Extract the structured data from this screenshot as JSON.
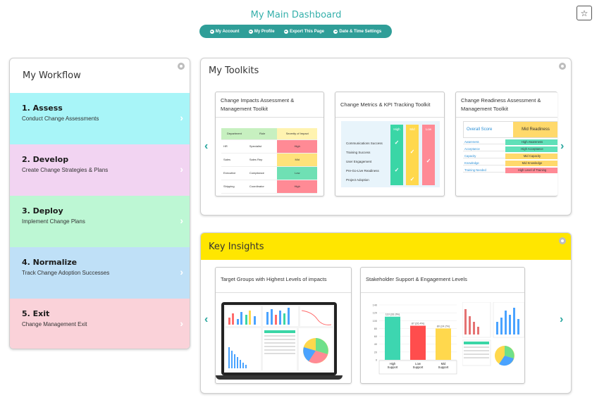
{
  "header": {
    "title": "My Main Dashboard",
    "nav": [
      "My Account",
      "My Profile",
      "Export This Page",
      "Date & Time Settings"
    ],
    "favorite_icon": "star-icon"
  },
  "workflow": {
    "title": "My Workflow",
    "items": [
      {
        "title": "1. Assess",
        "subtitle": "Conduct Change Assessments",
        "color": "#a8f5f8"
      },
      {
        "title": "2. Develop",
        "subtitle": "Create Change Strategies & Plans",
        "color": "#f2d4f2"
      },
      {
        "title": "3. Deploy",
        "subtitle": "Implement Change Plans",
        "color": "#bdf7d4"
      },
      {
        "title": "4. Normalize",
        "subtitle": "Track Change Adoption Successes",
        "color": "#bfe0f7"
      },
      {
        "title": "5. Exit",
        "subtitle": "Change Management Exit",
        "color": "#fad2d9"
      }
    ]
  },
  "toolkits": {
    "title": "My Toolkits",
    "cards": [
      {
        "title": "Change Impacts Assessment & Management Toolkit",
        "table": {
          "headers": [
            "Department",
            "Role",
            "Severity of Impact"
          ],
          "rows": [
            {
              "dept": "HR",
              "role": "Specialist",
              "severity": "High",
              "color": "#ff8a95"
            },
            {
              "dept": "Sales",
              "role": "Sales Rep",
              "severity": "Mid",
              "color": "#ffe27a"
            },
            {
              "dept": "Executive",
              "role": "Compliance",
              "severity": "Low",
              "color": "#6fe0b4"
            },
            {
              "dept": "Shipping",
              "role": "Coordinator",
              "severity": "High",
              "color": "#ff8a95"
            }
          ]
        }
      },
      {
        "title": "Change Metrics & KPI Tracking Toolkit",
        "columns": [
          "High",
          "Mid",
          "Low"
        ],
        "rows": [
          "Communications Success",
          "Training Success",
          "User Engagement",
          "Pre-Go-Live Readiness",
          "Project Adoption"
        ]
      },
      {
        "title": "Change Readiness Assessment & Management Toolkit",
        "overall_label": "Overall Score",
        "overall_value": "Mid Readiness",
        "rows": [
          {
            "k": "Awareness",
            "v": "High Awareness",
            "color": "#5fe0b8"
          },
          {
            "k": "Acceptance",
            "v": "High Acceptance",
            "color": "#5fe0b8"
          },
          {
            "k": "Capacity",
            "v": "Mid Capacity",
            "color": "#ffd96b"
          },
          {
            "k": "Knowledge",
            "v": "Mid Knowledge",
            "color": "#ffd96b"
          },
          {
            "k": "Training Needed",
            "v": "High Level of Training",
            "color": "#ff8a95"
          }
        ]
      }
    ]
  },
  "insights": {
    "title": "Key Insights",
    "cards": [
      {
        "title": "Target Groups with Highest Levels of impacts"
      },
      {
        "title": "Stakeholder Support & Engagement Levels",
        "bars": [
          {
            "label": "High Support",
            "value": 110,
            "tag": "110 (33.3%)",
            "color": "#3dd6b0"
          },
          {
            "label": "Low Support",
            "value": 87,
            "tag": "87 (26.4%)",
            "color": "#ff4d4d"
          },
          {
            "label": "Mid Support",
            "value": 80,
            "tag": "80 (24.2%)",
            "color": "#ffd84d"
          }
        ],
        "yticks": [
          "140",
          "120",
          "100",
          "80",
          "60",
          "40",
          "20",
          "0"
        ]
      }
    ]
  }
}
